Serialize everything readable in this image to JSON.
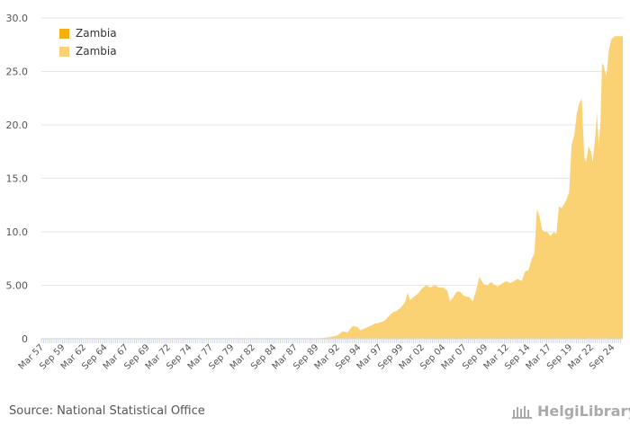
{
  "chart_data": {
    "type": "area",
    "title": "",
    "xlabel": "",
    "ylabel": "",
    "ylim": [
      0,
      30
    ],
    "yticks": [
      "0",
      "5.00",
      "10.0",
      "15.0",
      "20.0",
      "25.0",
      "30.0"
    ],
    "x_tick_labels": [
      "Mar 57",
      "Sep 59",
      "Mar 62",
      "Sep 64",
      "Mar 67",
      "Sep 69",
      "Mar 72",
      "Sep 74",
      "Mar 77",
      "Sep 79",
      "Mar 82",
      "Sep 84",
      "Mar 87",
      "Sep 89",
      "Mar 92",
      "Sep 94",
      "Mar 97",
      "Sep 99",
      "Mar 02",
      "Sep 04",
      "Mar 07",
      "Sep 09",
      "Mar 12",
      "Sep 14",
      "Mar 17",
      "Sep 19",
      "Mar 22",
      "Sep 24"
    ],
    "x_range": [
      1957.0,
      2025.75
    ],
    "series": [
      {
        "name": "Zambia",
        "color": "#f6ae10",
        "points": []
      },
      {
        "name": "Zambia",
        "color": "#fbd273",
        "points": [
          [
            1957.0,
            0.05
          ],
          [
            1990.0,
            0.05
          ],
          [
            1991.0,
            0.15
          ],
          [
            1992.0,
            0.3
          ],
          [
            1992.6,
            0.7
          ],
          [
            1993.2,
            0.6
          ],
          [
            1993.8,
            1.2
          ],
          [
            1994.4,
            1.1
          ],
          [
            1994.7,
            0.8
          ],
          [
            1995.3,
            1.0
          ],
          [
            1995.9,
            1.2
          ],
          [
            1996.4,
            1.4
          ],
          [
            1997.0,
            1.5
          ],
          [
            1997.6,
            1.7
          ],
          [
            1998.2,
            2.2
          ],
          [
            1998.6,
            2.5
          ],
          [
            1999.0,
            2.6
          ],
          [
            1999.5,
            2.9
          ],
          [
            2000.0,
            3.4
          ],
          [
            2000.3,
            4.3
          ],
          [
            2000.6,
            3.6
          ],
          [
            2001.0,
            3.9
          ],
          [
            2001.5,
            4.2
          ],
          [
            2002.0,
            4.7
          ],
          [
            2002.5,
            5.0
          ],
          [
            2003.0,
            4.8
          ],
          [
            2003.5,
            5.0
          ],
          [
            2004.0,
            4.8
          ],
          [
            2004.5,
            4.8
          ],
          [
            2005.0,
            4.5
          ],
          [
            2005.3,
            3.5
          ],
          [
            2005.7,
            3.9
          ],
          [
            2006.1,
            4.4
          ],
          [
            2006.5,
            4.4
          ],
          [
            2007.0,
            4.0
          ],
          [
            2007.6,
            3.9
          ],
          [
            2008.0,
            3.5
          ],
          [
            2008.4,
            4.5
          ],
          [
            2008.8,
            5.8
          ],
          [
            2009.3,
            5.1
          ],
          [
            2009.7,
            5.0
          ],
          [
            2010.2,
            5.3
          ],
          [
            2010.6,
            5.0
          ],
          [
            2011.0,
            4.9
          ],
          [
            2011.5,
            5.2
          ],
          [
            2012.0,
            5.4
          ],
          [
            2012.4,
            5.2
          ],
          [
            2012.9,
            5.4
          ],
          [
            2013.3,
            5.6
          ],
          [
            2013.8,
            5.4
          ],
          [
            2014.2,
            6.3
          ],
          [
            2014.6,
            6.4
          ],
          [
            2015.0,
            7.5
          ],
          [
            2015.3,
            8.0
          ],
          [
            2015.6,
            12.1
          ],
          [
            2015.9,
            11.5
          ],
          [
            2016.2,
            10.2
          ],
          [
            2016.5,
            10.0
          ],
          [
            2016.8,
            10.0
          ],
          [
            2017.2,
            9.6
          ],
          [
            2017.6,
            10.0
          ],
          [
            2017.9,
            9.8
          ],
          [
            2018.2,
            12.4
          ],
          [
            2018.5,
            12.2
          ],
          [
            2018.8,
            12.6
          ],
          [
            2019.1,
            13.0
          ],
          [
            2019.4,
            13.7
          ],
          [
            2019.7,
            18.2
          ],
          [
            2020.0,
            19.0
          ],
          [
            2020.3,
            21.0
          ],
          [
            2020.6,
            22.0
          ],
          [
            2020.9,
            22.5
          ],
          [
            2021.2,
            17.0
          ],
          [
            2021.4,
            16.5
          ],
          [
            2021.7,
            18.0
          ],
          [
            2022.0,
            17.5
          ],
          [
            2022.2,
            16.5
          ],
          [
            2022.5,
            19.0
          ],
          [
            2022.7,
            21.2
          ],
          [
            2022.9,
            18.0
          ],
          [
            2023.1,
            20.0
          ],
          [
            2023.3,
            25.8
          ],
          [
            2023.5,
            25.5
          ],
          [
            2023.8,
            24.5
          ],
          [
            2024.1,
            27.0
          ],
          [
            2024.4,
            28.0
          ],
          [
            2024.8,
            28.3
          ],
          [
            2025.75,
            28.3
          ]
        ]
      }
    ]
  },
  "source_text": "Source: National Statistical Office",
  "brand_text": "HelgiLibrary"
}
